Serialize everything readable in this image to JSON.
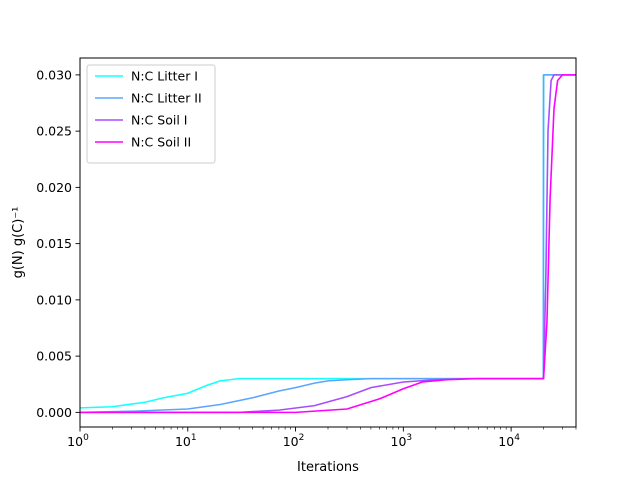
{
  "chart_data": {
    "type": "line",
    "xscale": "log",
    "xlabel": "Iterations",
    "ylabel": "g(N) g(C)⁻¹",
    "xlim": [
      1,
      40000
    ],
    "ylim": [
      -0.0013,
      0.0315
    ],
    "x_ticks": [
      {
        "value": 1,
        "base": "10",
        "exp": "0"
      },
      {
        "value": 10,
        "base": "10",
        "exp": "1"
      },
      {
        "value": 100,
        "base": "10",
        "exp": "2"
      },
      {
        "value": 1000,
        "base": "10",
        "exp": "3"
      },
      {
        "value": 10000,
        "base": "10",
        "exp": "4"
      }
    ],
    "y_ticks": [
      {
        "value": 0.0,
        "label": "0.000"
      },
      {
        "value": 0.005,
        "label": "0.005"
      },
      {
        "value": 0.01,
        "label": "0.010"
      },
      {
        "value": 0.015,
        "label": "0.015"
      },
      {
        "value": 0.02,
        "label": "0.020"
      },
      {
        "value": 0.025,
        "label": "0.025"
      },
      {
        "value": 0.03,
        "label": "0.030"
      }
    ],
    "grid": false,
    "legend": "top-left",
    "series": [
      {
        "name": "N:C Litter I",
        "color": "#17ffff",
        "points": [
          [
            1,
            0.0004
          ],
          [
            2,
            0.0005
          ],
          [
            4,
            0.0009
          ],
          [
            6,
            0.0013
          ],
          [
            10,
            0.0017
          ],
          [
            15,
            0.0024
          ],
          [
            20,
            0.0028
          ],
          [
            30,
            0.003
          ],
          [
            50,
            0.003
          ],
          [
            100,
            0.003
          ],
          [
            1000,
            0.003
          ],
          [
            10000,
            0.003
          ],
          [
            19900,
            0.003
          ],
          [
            20000,
            0.03
          ],
          [
            40000,
            0.03
          ]
        ]
      },
      {
        "name": "N:C Litter II",
        "color": "#5aa5ff",
        "points": [
          [
            1,
            0.0
          ],
          [
            3,
            0.0001
          ],
          [
            10,
            0.0003
          ],
          [
            20,
            0.0007
          ],
          [
            40,
            0.0013
          ],
          [
            70,
            0.0019
          ],
          [
            100,
            0.0022
          ],
          [
            150,
            0.0026
          ],
          [
            200,
            0.0028
          ],
          [
            300,
            0.0029
          ],
          [
            500,
            0.003
          ],
          [
            1000,
            0.003
          ],
          [
            10000,
            0.003
          ],
          [
            19900,
            0.003
          ],
          [
            20000,
            0.03
          ],
          [
            40000,
            0.03
          ]
        ]
      },
      {
        "name": "N:C Soil I",
        "color": "#a74dff",
        "points": [
          [
            1,
            0.0
          ],
          [
            30,
            0.0
          ],
          [
            70,
            0.0002
          ],
          [
            150,
            0.0006
          ],
          [
            300,
            0.0014
          ],
          [
            500,
            0.0022
          ],
          [
            1000,
            0.0027
          ],
          [
            2000,
            0.0029
          ],
          [
            4000,
            0.003
          ],
          [
            10000,
            0.003
          ],
          [
            20000,
            0.003
          ],
          [
            21000,
            0.012
          ],
          [
            22000,
            0.025
          ],
          [
            23500,
            0.0295
          ],
          [
            25000,
            0.03
          ],
          [
            40000,
            0.03
          ]
        ]
      },
      {
        "name": "N:C Soil II",
        "color": "#ff00ff",
        "points": [
          [
            1,
            0.0
          ],
          [
            100,
            0.0
          ],
          [
            300,
            0.0003
          ],
          [
            600,
            0.0012
          ],
          [
            1000,
            0.0021
          ],
          [
            1500,
            0.0027
          ],
          [
            2500,
            0.0029
          ],
          [
            5000,
            0.003
          ],
          [
            10000,
            0.003
          ],
          [
            20000,
            0.003
          ],
          [
            21500,
            0.008
          ],
          [
            23000,
            0.019
          ],
          [
            25000,
            0.027
          ],
          [
            27000,
            0.0295
          ],
          [
            30000,
            0.03
          ],
          [
            40000,
            0.03
          ]
        ]
      }
    ]
  }
}
